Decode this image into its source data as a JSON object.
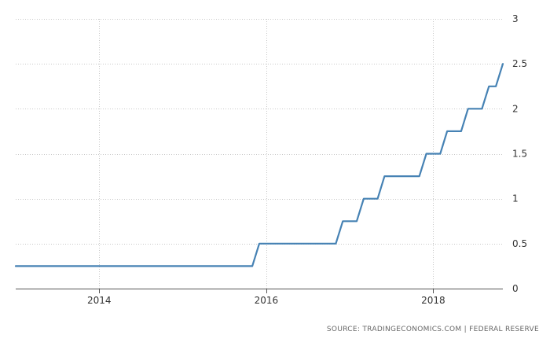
{
  "chart_data": {
    "type": "line",
    "title": "",
    "xlabel": "",
    "ylabel": "",
    "xlim": [
      "2013-01",
      "2018-11"
    ],
    "ylim": [
      0,
      3
    ],
    "x_ticks": [
      {
        "date": "2014-01",
        "label": "2014"
      },
      {
        "date": "2016-01",
        "label": "2016"
      },
      {
        "date": "2018-01",
        "label": "2018"
      }
    ],
    "y_ticks": [
      {
        "value": 0,
        "label": "0"
      },
      {
        "value": 0.5,
        "label": "0.5"
      },
      {
        "value": 1,
        "label": "1"
      },
      {
        "value": 1.5,
        "label": "1.5"
      },
      {
        "value": 2,
        "label": "2"
      },
      {
        "value": 2.5,
        "label": "2.5"
      },
      {
        "value": 3,
        "label": "3"
      }
    ],
    "grid": true,
    "series": [
      {
        "color": "#4682b4",
        "points": [
          [
            "2013-01",
            0.25
          ],
          [
            "2015-11",
            0.25
          ],
          [
            "2015-12",
            0.5
          ],
          [
            "2016-11",
            0.5
          ],
          [
            "2016-12",
            0.75
          ],
          [
            "2017-02",
            0.75
          ],
          [
            "2017-03",
            1.0
          ],
          [
            "2017-05",
            1.0
          ],
          [
            "2017-06",
            1.25
          ],
          [
            "2017-11",
            1.25
          ],
          [
            "2017-12",
            1.5
          ],
          [
            "2018-02",
            1.5
          ],
          [
            "2018-03",
            1.75
          ],
          [
            "2018-05",
            1.75
          ],
          [
            "2018-06",
            2.0
          ],
          [
            "2018-08",
            2.0
          ],
          [
            "2018-09",
            2.25
          ],
          [
            "2018-10",
            2.25
          ],
          [
            "2018-11",
            2.5
          ]
        ]
      }
    ]
  },
  "source_text": "SOURCE: TRADINGECONOMICS.COM | FEDERAL RESERVE"
}
